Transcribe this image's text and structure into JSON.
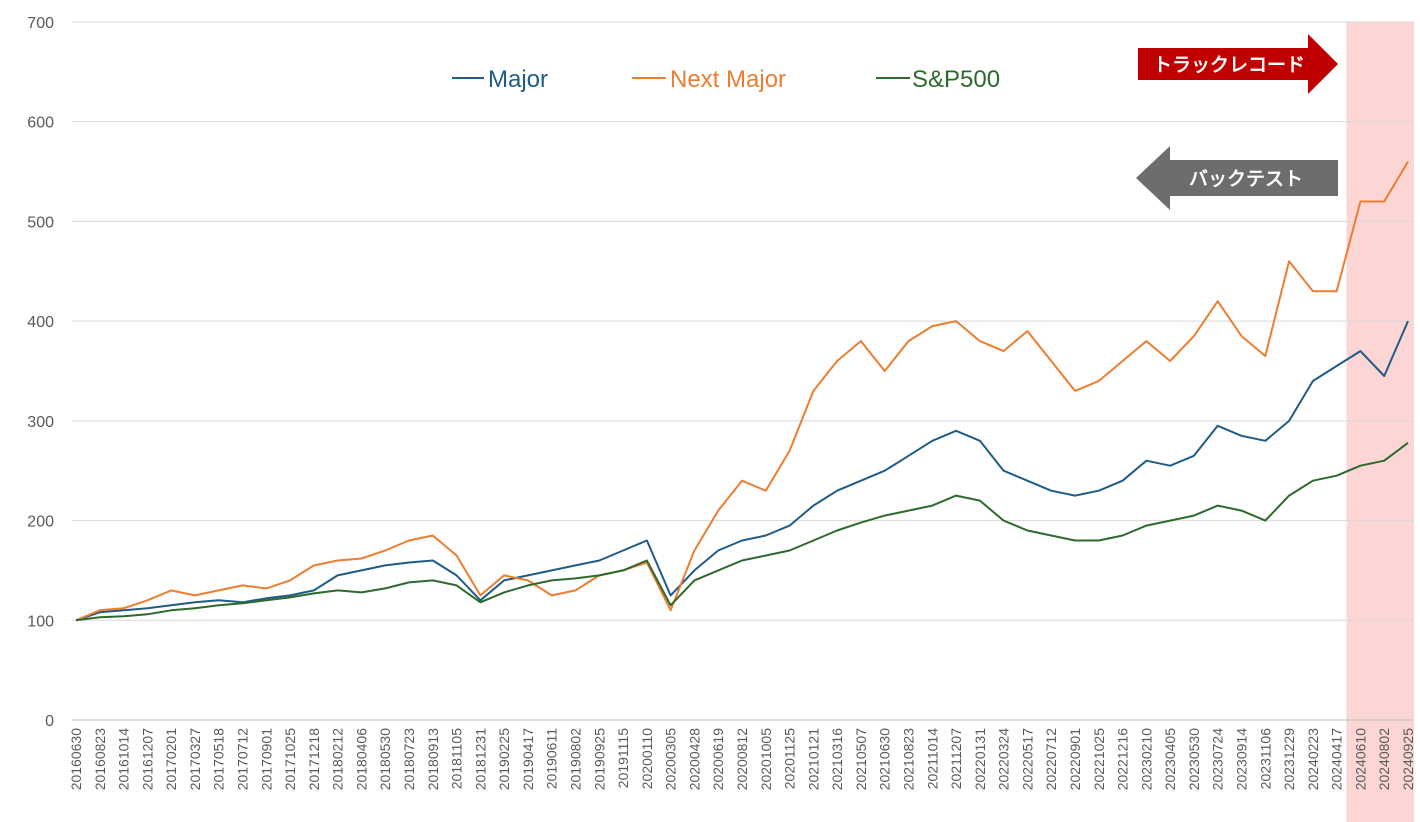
{
  "chart_data": {
    "type": "line",
    "title": "",
    "xlabel": "",
    "ylabel": "",
    "ylim": [
      0,
      700
    ],
    "yticks": [
      0,
      100,
      200,
      300,
      400,
      500,
      600,
      700
    ],
    "grid": "horizontal",
    "legend_position": "top",
    "x": [
      "20160630",
      "20160823",
      "20161014",
      "20161207",
      "20170201",
      "20170327",
      "20170518",
      "20170712",
      "20170901",
      "20171025",
      "20171218",
      "20180212",
      "20180406",
      "20180530",
      "20180723",
      "20180913",
      "20181105",
      "20181231",
      "20190225",
      "20190417",
      "20190611",
      "20190802",
      "20190925",
      "20191115",
      "20200110",
      "20200305",
      "20200428",
      "20200619",
      "20200812",
      "20201005",
      "20201125",
      "20210121",
      "20210316",
      "20210507",
      "20210630",
      "20210823",
      "20211014",
      "20211207",
      "20220131",
      "20220324",
      "20220517",
      "20220712",
      "20220901",
      "20221025",
      "20221216",
      "20230210",
      "20230405",
      "20230530",
      "20230724",
      "20230914",
      "20231106",
      "20231229",
      "20240223",
      "20240417",
      "20240610",
      "20240802",
      "20240925"
    ],
    "series": [
      {
        "name": "Major",
        "color": "#1f5c87",
        "values": [
          100,
          108,
          110,
          112,
          115,
          118,
          120,
          118,
          122,
          125,
          130,
          145,
          150,
          155,
          158,
          160,
          145,
          120,
          140,
          145,
          150,
          155,
          160,
          170,
          180,
          125,
          150,
          170,
          180,
          185,
          195,
          215,
          230,
          240,
          250,
          265,
          280,
          290,
          280,
          250,
          240,
          230,
          225,
          230,
          240,
          260,
          255,
          265,
          295,
          285,
          280,
          300,
          340,
          355,
          370,
          345,
          400
        ]
      },
      {
        "name": "Next Major",
        "color": "#ed7d31",
        "values": [
          100,
          110,
          112,
          120,
          130,
          125,
          130,
          135,
          132,
          140,
          155,
          160,
          162,
          170,
          180,
          185,
          165,
          125,
          145,
          140,
          125,
          130,
          145,
          150,
          158,
          110,
          170,
          210,
          240,
          230,
          270,
          330,
          360,
          380,
          350,
          380,
          395,
          400,
          380,
          370,
          390,
          360,
          330,
          340,
          360,
          380,
          360,
          385,
          420,
          385,
          365,
          460,
          430,
          430,
          520,
          520,
          560
        ]
      },
      {
        "name": "S&P500",
        "color": "#2d6a2d",
        "values": [
          100,
          103,
          104,
          106,
          110,
          112,
          115,
          117,
          120,
          123,
          127,
          130,
          128,
          132,
          138,
          140,
          135,
          118,
          128,
          135,
          140,
          142,
          145,
          150,
          160,
          115,
          140,
          150,
          160,
          165,
          170,
          180,
          190,
          198,
          205,
          210,
          215,
          225,
          220,
          200,
          190,
          185,
          180,
          180,
          185,
          195,
          200,
          205,
          215,
          210,
          200,
          225,
          240,
          245,
          255,
          260,
          278
        ]
      }
    ]
  },
  "legend": {
    "major": "Major",
    "next_major": "Next Major",
    "sp500": "S&P500"
  },
  "annotations": {
    "track_record": "トラックレコード",
    "backtest": "バックテスト",
    "track_record_color": "#c00000",
    "backtest_color": "#6d6d6d",
    "highlight_color": "#fcd5d5",
    "highlight_start": "20240610"
  }
}
